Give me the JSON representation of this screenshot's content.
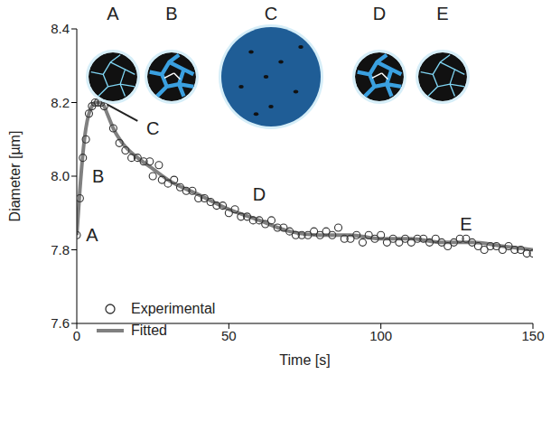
{
  "chart_data": {
    "type": "scatter",
    "x_label": "Time [s]",
    "y_label": "Diameter [µm]",
    "xlim": [
      0,
      150
    ],
    "xticks": [
      0,
      50,
      100,
      150
    ],
    "ylim": [
      7.6,
      8.4
    ],
    "yticks": [
      7.6,
      7.8,
      {
        "value": 8,
        "label": "8.0"
      },
      8.2,
      8.4
    ],
    "grid": false,
    "legend": "lower left",
    "panel_labels": [
      "A",
      "B",
      "C",
      "D",
      "E"
    ],
    "annotations": [
      {
        "text": "A",
        "x": 5,
        "y": 7.84
      },
      {
        "text": "B",
        "x": 7,
        "y": 8.0
      },
      {
        "text": "C",
        "x": 25,
        "y": 8.13,
        "arrow_from": [
          20,
          8.15
        ],
        "arrow_to": [
          10,
          8.195
        ]
      },
      {
        "text": "D",
        "x": 60,
        "y": 7.95
      },
      {
        "text": "E",
        "x": 128,
        "y": 7.87
      }
    ],
    "series": [
      {
        "name": "Experimental",
        "type": "scatter",
        "marker": "circle-open",
        "color": "#333333",
        "x": [
          0,
          1,
          2,
          3,
          4,
          5,
          6,
          7,
          8,
          9,
          12,
          14,
          16,
          18,
          20,
          22,
          24,
          25,
          27,
          28,
          30,
          32,
          34,
          36,
          38,
          40,
          42,
          44,
          46,
          48,
          50,
          52,
          54,
          56,
          58,
          60,
          62,
          64,
          66,
          68,
          70,
          72,
          74,
          76,
          78,
          80,
          82,
          84,
          86,
          88,
          90,
          92,
          94,
          96,
          98,
          100,
          102,
          104,
          106,
          108,
          110,
          112,
          114,
          116,
          118,
          120,
          122,
          124,
          126,
          128,
          130,
          132,
          134,
          136,
          138,
          140,
          142,
          144,
          146,
          148,
          150
        ],
        "values": [
          7.84,
          7.94,
          8.05,
          8.1,
          8.17,
          8.19,
          8.2,
          8.2,
          8.2,
          8.19,
          8.13,
          8.09,
          8.07,
          8.05,
          8.05,
          8.04,
          8.04,
          8.0,
          8.03,
          7.99,
          7.98,
          7.99,
          7.97,
          7.96,
          7.96,
          7.94,
          7.94,
          7.93,
          7.92,
          7.92,
          7.9,
          7.91,
          7.89,
          7.89,
          7.88,
          7.88,
          7.87,
          7.88,
          7.86,
          7.86,
          7.85,
          7.84,
          7.84,
          7.84,
          7.85,
          7.84,
          7.85,
          7.84,
          7.86,
          7.83,
          7.83,
          7.84,
          7.82,
          7.84,
          7.83,
          7.84,
          7.82,
          7.83,
          7.82,
          7.83,
          7.82,
          7.83,
          7.83,
          7.82,
          7.83,
          7.82,
          7.81,
          7.82,
          7.83,
          7.83,
          7.82,
          7.81,
          7.8,
          7.81,
          7.81,
          7.8,
          7.81,
          7.8,
          7.8,
          7.79,
          7.79
        ]
      },
      {
        "name": "Fitted",
        "type": "line",
        "line_style": "solid",
        "color": "#808080",
        "x": [
          0,
          1,
          2,
          3,
          4,
          5,
          6,
          8,
          9,
          10,
          12,
          15,
          20,
          25,
          30,
          40,
          50,
          60,
          70,
          80,
          90,
          100,
          110,
          120,
          130,
          140,
          150
        ],
        "values": [
          7.84,
          7.96,
          8.06,
          8.13,
          8.17,
          8.19,
          8.2,
          8.2,
          8.19,
          8.17,
          8.13,
          8.09,
          8.05,
          8.02,
          7.99,
          7.95,
          7.91,
          7.88,
          7.85,
          7.84,
          7.84,
          7.83,
          7.83,
          7.82,
          7.82,
          7.81,
          7.8
        ]
      }
    ]
  }
}
